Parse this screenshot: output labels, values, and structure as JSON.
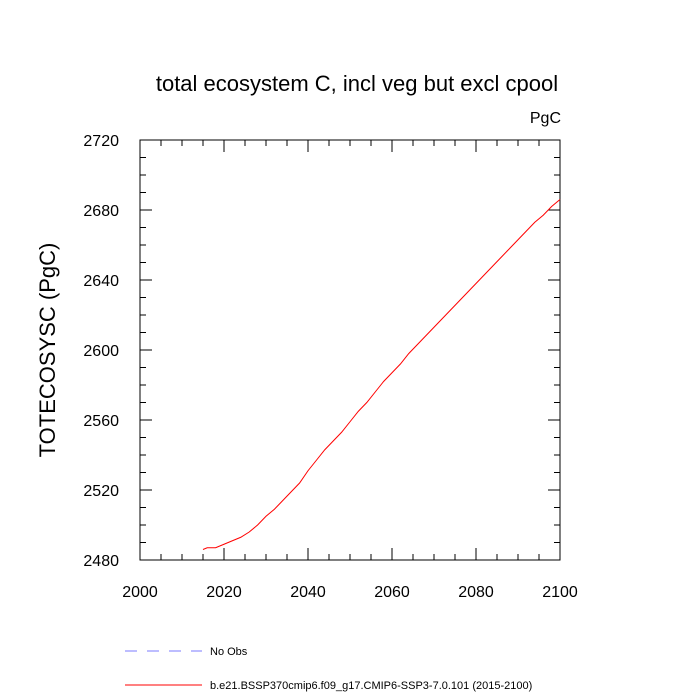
{
  "chart_data": {
    "type": "line",
    "title": "total ecosystem C, incl veg but excl cpool",
    "units_label": "PgC",
    "xlabel": "",
    "ylabel": "TOTECOSYSC  (PgC)",
    "xlim": [
      2000,
      2100
    ],
    "ylim": [
      2480,
      2720
    ],
    "xticks": [
      2000,
      2020,
      2040,
      2060,
      2080,
      2100
    ],
    "yticks": [
      2480,
      2520,
      2560,
      2600,
      2640,
      2680,
      2720
    ],
    "grid": false,
    "series": [
      {
        "name": "b.e21.BSSP370cmip6.f09_g17.CMIP6-SSP3-7.0.101 (2015-2100)",
        "color": "#ff0000",
        "style": "solid",
        "x": [
          2015,
          2016,
          2018,
          2020,
          2022,
          2024,
          2026,
          2028,
          2030,
          2032,
          2034,
          2036,
          2038,
          2040,
          2042,
          2044,
          2046,
          2048,
          2050,
          2052,
          2054,
          2056,
          2058,
          2060,
          2062,
          2064,
          2066,
          2068,
          2070,
          2072,
          2074,
          2076,
          2078,
          2080,
          2082,
          2084,
          2086,
          2088,
          2090,
          2092,
          2094,
          2096,
          2098,
          2100
        ],
        "values": [
          2486,
          2487,
          2487,
          2489,
          2491,
          2493,
          2496,
          2500,
          2505,
          2509,
          2514,
          2519,
          2524,
          2531,
          2537,
          2543,
          2548,
          2553,
          2559,
          2565,
          2570,
          2576,
          2582,
          2587,
          2592,
          2598,
          2603,
          2608,
          2613,
          2618,
          2623,
          2628,
          2633,
          2638,
          2643,
          2648,
          2653,
          2658,
          2663,
          2668,
          2673,
          2677,
          2682,
          2686
        ]
      }
    ],
    "legend": [
      {
        "name": "No Obs",
        "color": "#7b7bff",
        "style": "dashed"
      },
      {
        "name": "b.e21.BSSP370cmip6.f09_g17.CMIP6-SSP3-7.0.101 (2015-2100)",
        "color": "#ff0000",
        "style": "solid"
      }
    ]
  }
}
